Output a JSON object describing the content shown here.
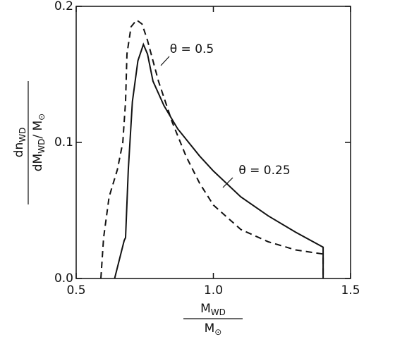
{
  "chart_data": {
    "type": "line",
    "xlabel": {
      "top": [
        "M",
        "WD"
      ],
      "bottom": [
        "M",
        "⊙"
      ]
    },
    "ylabel": {
      "top": [
        "dn",
        "WD"
      ],
      "bottom": [
        "dM",
        "WD",
        "/ M",
        "⊙"
      ]
    },
    "xlim": [
      0.5,
      1.5
    ],
    "xticks": [
      0.5,
      {
        "value": 1,
        "label": "1.0"
      },
      1.5
    ],
    "ylim": [
      0,
      0.2
    ],
    "yticks": [
      {
        "value": 0,
        "label": "0.0"
      },
      0.1,
      0.2
    ],
    "series": [
      {
        "name": "θ = 0.25",
        "color": "#111111",
        "dashed": false,
        "x": [
          0.64,
          0.675,
          0.68,
          0.69,
          0.705,
          0.725,
          0.745,
          0.76,
          0.78,
          0.82,
          0.87,
          0.95,
          1.0,
          1.1,
          1.2,
          1.3,
          1.4,
          1.4
        ],
        "values": [
          0,
          0.028,
          0.03,
          0.08,
          0.13,
          0.16,
          0.172,
          0.165,
          0.145,
          0.127,
          0.11,
          0.09,
          0.079,
          0.06,
          0.046,
          0.034,
          0.023,
          0
        ]
      },
      {
        "name": "θ = 0.5",
        "color": "#111111",
        "dashed": true,
        "x": [
          0.59,
          0.6,
          0.62,
          0.65,
          0.67,
          0.68,
          0.685,
          0.7,
          0.72,
          0.74,
          0.76,
          0.8,
          0.85,
          0.9,
          0.95,
          1.0,
          1.1,
          1.2,
          1.3,
          1.4,
          1.4
        ],
        "values": [
          0,
          0.03,
          0.06,
          0.08,
          0.1,
          0.13,
          0.165,
          0.185,
          0.19,
          0.187,
          0.175,
          0.145,
          0.115,
          0.09,
          0.07,
          0.054,
          0.036,
          0.027,
          0.021,
          0.018,
          0
        ]
      }
    ]
  }
}
